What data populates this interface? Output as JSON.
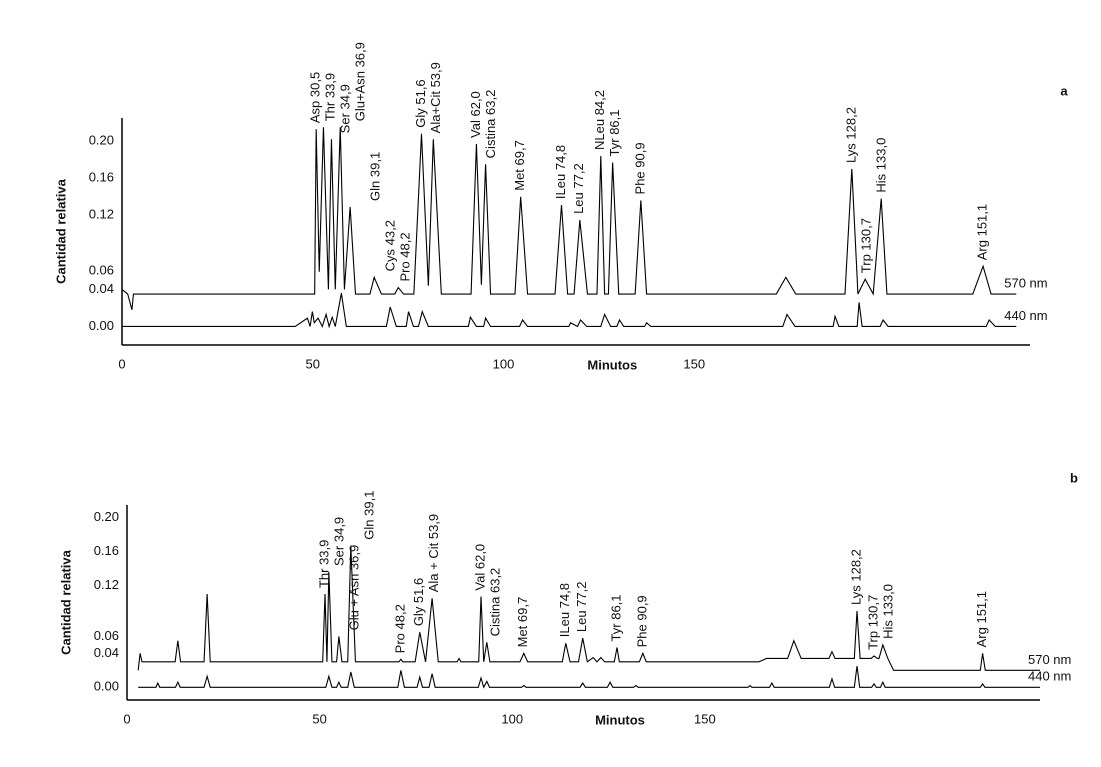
{
  "chart_data": [
    {
      "type": "line",
      "panel_label": "a",
      "x_label": "Minutos",
      "y_label": "Cantidad relativa",
      "xlim": [
        0,
        238
      ],
      "xticks": [
        0,
        50,
        100,
        150
      ],
      "ylim": [
        -0.02,
        0.225
      ],
      "yticks": [
        {
          "value": 0,
          "label": "0.00"
        },
        {
          "value": 0.04,
          "label": "0.04"
        },
        {
          "value": 0.06,
          "label": "0.06"
        },
        {
          "value": 0.12,
          "label": "0.12"
        },
        {
          "value": 0.16,
          "label": "0.16"
        },
        {
          "value": 0.2,
          "label": "0.20"
        }
      ],
      "series": [
        {
          "name": "570 nm",
          "color": "#000000",
          "x": [
            0,
            1.5,
            2.6,
            3,
            50.5,
            50.9,
            51.7,
            52.8,
            54.1,
            54.9,
            55.9,
            57.2,
            58.3,
            59.8,
            61.2,
            65,
            66.1,
            68,
            71.5,
            72.4,
            73.8,
            76.5,
            78.5,
            80.3,
            81.6,
            83.7,
            91.5,
            92.9,
            94.2,
            95.3,
            96.6,
            103,
            104.5,
            106.3,
            113.5,
            115.2,
            116.8,
            118.5,
            120,
            122,
            124.5,
            125.5,
            126.5,
            127.5,
            128.6,
            130.2,
            134.5,
            136,
            137.5,
            171.5,
            174,
            176.6,
            189.5,
            191.3,
            192.9,
            194.8,
            196.9,
            199,
            200.5,
            223,
            225.7,
            227.8,
            234.4
          ],
          "values": [
            0.04,
            0.035,
            0.018,
            0.035,
            0.035,
            0.213,
            0.059,
            0.215,
            0.04,
            0.202,
            0.04,
            0.215,
            0.04,
            0.129,
            0.035,
            0.035,
            0.053,
            0.035,
            0.035,
            0.042,
            0.035,
            0.035,
            0.208,
            0.044,
            0.202,
            0.035,
            0.035,
            0.197,
            0.045,
            0.175,
            0.035,
            0.035,
            0.14,
            0.035,
            0.035,
            0.131,
            0.035,
            0.035,
            0.115,
            0.035,
            0.035,
            0.184,
            0.035,
            0.035,
            0.177,
            0.035,
            0.035,
            0.136,
            0.035,
            0.035,
            0.053,
            0.035,
            0.035,
            0.17,
            0.035,
            0.051,
            0.035,
            0.138,
            0.035,
            0.035,
            0.065,
            0.035,
            0.035
          ]
        },
        {
          "name": "440 nm",
          "color": "#000000",
          "x": [
            0,
            45.4,
            48.6,
            49.3,
            49.9,
            50.4,
            51.4,
            52.5,
            53.5,
            54.3,
            55.1,
            55.9,
            57.5,
            58.8,
            69.3,
            70.3,
            71.9,
            74.5,
            75.1,
            76.4,
            77.7,
            78.7,
            80.3,
            90.8,
            91.3,
            92.9,
            94.8,
            95.3,
            96.6,
            104.2,
            105,
            106.3,
            117.1,
            117.6,
            119.4,
            120.2,
            121.8,
            125.5,
            126.5,
            128.1,
            129.7,
            130.4,
            131.5,
            137,
            137.5,
            138.6,
            173.2,
            174.3,
            176.4,
            186.4,
            186.9,
            187.9,
            192.7,
            193.2,
            194,
            198.7,
            199.5,
            200.8,
            226.5,
            227.3,
            228.9,
            234.4
          ],
          "values": [
            0,
            0,
            0.009,
            0,
            0.016,
            0.004,
            0.009,
            0,
            0.013,
            0,
            0.01,
            0,
            0.036,
            0,
            0,
            0.021,
            0,
            0,
            0.016,
            0,
            0,
            0.016,
            0,
            0,
            0.01,
            0,
            0,
            0.009,
            0,
            0,
            0.007,
            0,
            0,
            0.004,
            0,
            0.007,
            0,
            0,
            0.013,
            0,
            0,
            0.007,
            0,
            0,
            0.004,
            0,
            0,
            0.013,
            0,
            0,
            0.011,
            0,
            0,
            0.026,
            0,
            0,
            0.007,
            0,
            0,
            0.007,
            0,
            0
          ]
        }
      ],
      "annotations": [
        {
          "label": "Asp 30,5",
          "x": 50.9
        },
        {
          "label": "Thr 33,9",
          "x": 52.8
        },
        {
          "label": "Ser 34,9",
          "x": 54.9
        },
        {
          "label": "Glu+Asn 36,9",
          "x": 57.2
        },
        {
          "label": "Gln 39,1",
          "x": 59.8
        },
        {
          "label": "Cys 43,2",
          "x": 66.1
        },
        {
          "label": "Pro 48,2",
          "x": 72.4
        },
        {
          "label": "Gly 51,6",
          "x": 78.5
        },
        {
          "label": "Ala+Cit 53,9",
          "x": 81.6
        },
        {
          "label": "Val 62,0",
          "x": 92.9
        },
        {
          "label": "Cistina 63,2",
          "x": 95.3
        },
        {
          "label": "Met 69,7",
          "x": 104.5
        },
        {
          "label": "ILeu 74,8",
          "x": 115.2
        },
        {
          "label": "Leu 77,2",
          "x": 120
        },
        {
          "label": "NLeu 84,2",
          "x": 125.5
        },
        {
          "label": "Tyr 86,1",
          "x": 128.6
        },
        {
          "label": "Phe 90,9",
          "x": 136
        },
        {
          "label": "Lys 128,2",
          "x": 191.3
        },
        {
          "label": "Trp 130,7",
          "x": 194.8
        },
        {
          "label": "His 133,0",
          "x": 199
        },
        {
          "label": "Arg 151,1",
          "x": 225.7
        }
      ]
    },
    {
      "type": "line",
      "panel_label": "b",
      "x_label": "Minutos",
      "y_label": "Cantidad relativa",
      "xlim": [
        0,
        237
      ],
      "xticks": [
        0,
        50,
        100,
        150
      ],
      "ylim": [
        -0.015,
        0.215
      ],
      "yticks": [
        {
          "value": 0,
          "label": "0.00"
        },
        {
          "value": 0.04,
          "label": "0.04"
        },
        {
          "value": 0.06,
          "label": "0.06"
        },
        {
          "value": 0.12,
          "label": "0.12"
        },
        {
          "value": 0.16,
          "label": "0.16"
        },
        {
          "value": 0.2,
          "label": "0.20"
        }
      ],
      "series": [
        {
          "name": "570 nm",
          "color": "#000000",
          "x": [
            2.9,
            3.4,
            3.9,
            12.5,
            13.2,
            13.9,
            20,
            20.8,
            21.6,
            50.8,
            51.4,
            51.9,
            52.4,
            53.2,
            54.4,
            55,
            55.8,
            57.3,
            58.1,
            59.3,
            70.6,
            71.1,
            71.6,
            74.8,
            76,
            77.5,
            79.2,
            80.8,
            85.7,
            86.2,
            86.7,
            91.3,
            91.9,
            92.6,
            93.4,
            94.2,
            102,
            103,
            104,
            113,
            113.9,
            115,
            117.2,
            118.3,
            119.5,
            121,
            122,
            123,
            124,
            126.5,
            127.2,
            127.8,
            133,
            133.9,
            134.8,
            164,
            166,
            171.5,
            173.1,
            175,
            182.2,
            183,
            183.8,
            188.8,
            189.5,
            190.3,
            193.2,
            193.9,
            194.8,
            195.2,
            196.2,
            197.5,
            199,
            221.5,
            222.1,
            222.8,
            237
          ],
          "values": [
            0.02,
            0.04,
            0.03,
            0.03,
            0.055,
            0.03,
            0.03,
            0.11,
            0.03,
            0.03,
            0.11,
            0.03,
            0.136,
            0.03,
            0.03,
            0.06,
            0.03,
            0.03,
            0.167,
            0.03,
            0.03,
            0.033,
            0.03,
            0.03,
            0.065,
            0.03,
            0.105,
            0.03,
            0.03,
            0.034,
            0.03,
            0.03,
            0.107,
            0.03,
            0.053,
            0.03,
            0.03,
            0.04,
            0.03,
            0.03,
            0.052,
            0.03,
            0.03,
            0.058,
            0.03,
            0.035,
            0.03,
            0.035,
            0.03,
            0.03,
            0.047,
            0.03,
            0.03,
            0.04,
            0.03,
            0.03,
            0.034,
            0.034,
            0.055,
            0.034,
            0.034,
            0.042,
            0.034,
            0.034,
            0.09,
            0.034,
            0.034,
            0.037,
            0.034,
            0.034,
            0.05,
            0.034,
            0.02,
            0.02,
            0.04,
            0.02,
            0.02
          ]
        },
        {
          "name": "440 nm",
          "color": "#000000",
          "x": [
            2.9,
            7.5,
            8,
            8.5,
            12.6,
            13.2,
            13.8,
            20,
            20.8,
            21.6,
            51.6,
            52.4,
            53.2,
            54.4,
            55,
            55.6,
            57.3,
            58.1,
            59,
            70.3,
            71.1,
            72,
            75.3,
            76,
            76.7,
            78.4,
            79.2,
            80,
            91.2,
            91.9,
            92.6,
            93.4,
            94.1,
            102.4,
            103,
            103.6,
            117.6,
            118.3,
            119,
            124.7,
            125.4,
            126.1,
            131.5,
            132.1,
            132.7,
            161.2,
            161.7,
            162.2,
            166.8,
            167.4,
            168,
            182.3,
            183,
            183.7,
            188.8,
            189.5,
            190.2,
            193.3,
            193.9,
            194.5,
            195.6,
            196.2,
            196.8,
            221.5,
            222.1,
            222.7,
            237
          ],
          "values": [
            0,
            0,
            0.005,
            0,
            0,
            0.006,
            0,
            0,
            0.013,
            0,
            0,
            0.013,
            0,
            0,
            0.006,
            0,
            0,
            0.018,
            0,
            0,
            0.02,
            0,
            0,
            0.012,
            0,
            0,
            0.016,
            0,
            0,
            0.011,
            0,
            0.007,
            0,
            0,
            0.002,
            0,
            0,
            0.005,
            0,
            0,
            0.006,
            0,
            0,
            0.002,
            0,
            0,
            0.002,
            0,
            0,
            0.005,
            0,
            0,
            0.01,
            0,
            0,
            0.025,
            0,
            0,
            0.004,
            0,
            0,
            0.006,
            0,
            0,
            0.004,
            0,
            0
          ]
        }
      ],
      "annotations": [
        {
          "label": "Thr 33,9",
          "x": 51.4
        },
        {
          "label": "Ser 34,9",
          "x": 52.4
        },
        {
          "label": "Glu + Asn 36,9",
          "x": 55
        },
        {
          "label": "Gln 39,1",
          "x": 58.1
        },
        {
          "label": "Pro 48,2",
          "x": 71.1
        },
        {
          "label": "Gly 51,6",
          "x": 76
        },
        {
          "label": "Ala + Cit 53,9",
          "x": 79.2
        },
        {
          "label": "Val 62,0",
          "x": 91.9
        },
        {
          "label": "Cistina 63,2",
          "x": 93.4
        },
        {
          "label": "Met 69,7",
          "x": 103
        },
        {
          "label": "ILeu 74,8",
          "x": 113.9
        },
        {
          "label": "Leu 77,2",
          "x": 118.3
        },
        {
          "label": "Tyr 86,1",
          "x": 127.2
        },
        {
          "label": "Phe 90,9",
          "x": 133.9
        },
        {
          "label": "Lys 128,2",
          "x": 189.5
        },
        {
          "label": "Trp 130,7",
          "x": 193.9
        },
        {
          "label": "His 133,0",
          "x": 196.2
        },
        {
          "label": "Arg 151,1",
          "x": 222.1
        }
      ]
    }
  ]
}
